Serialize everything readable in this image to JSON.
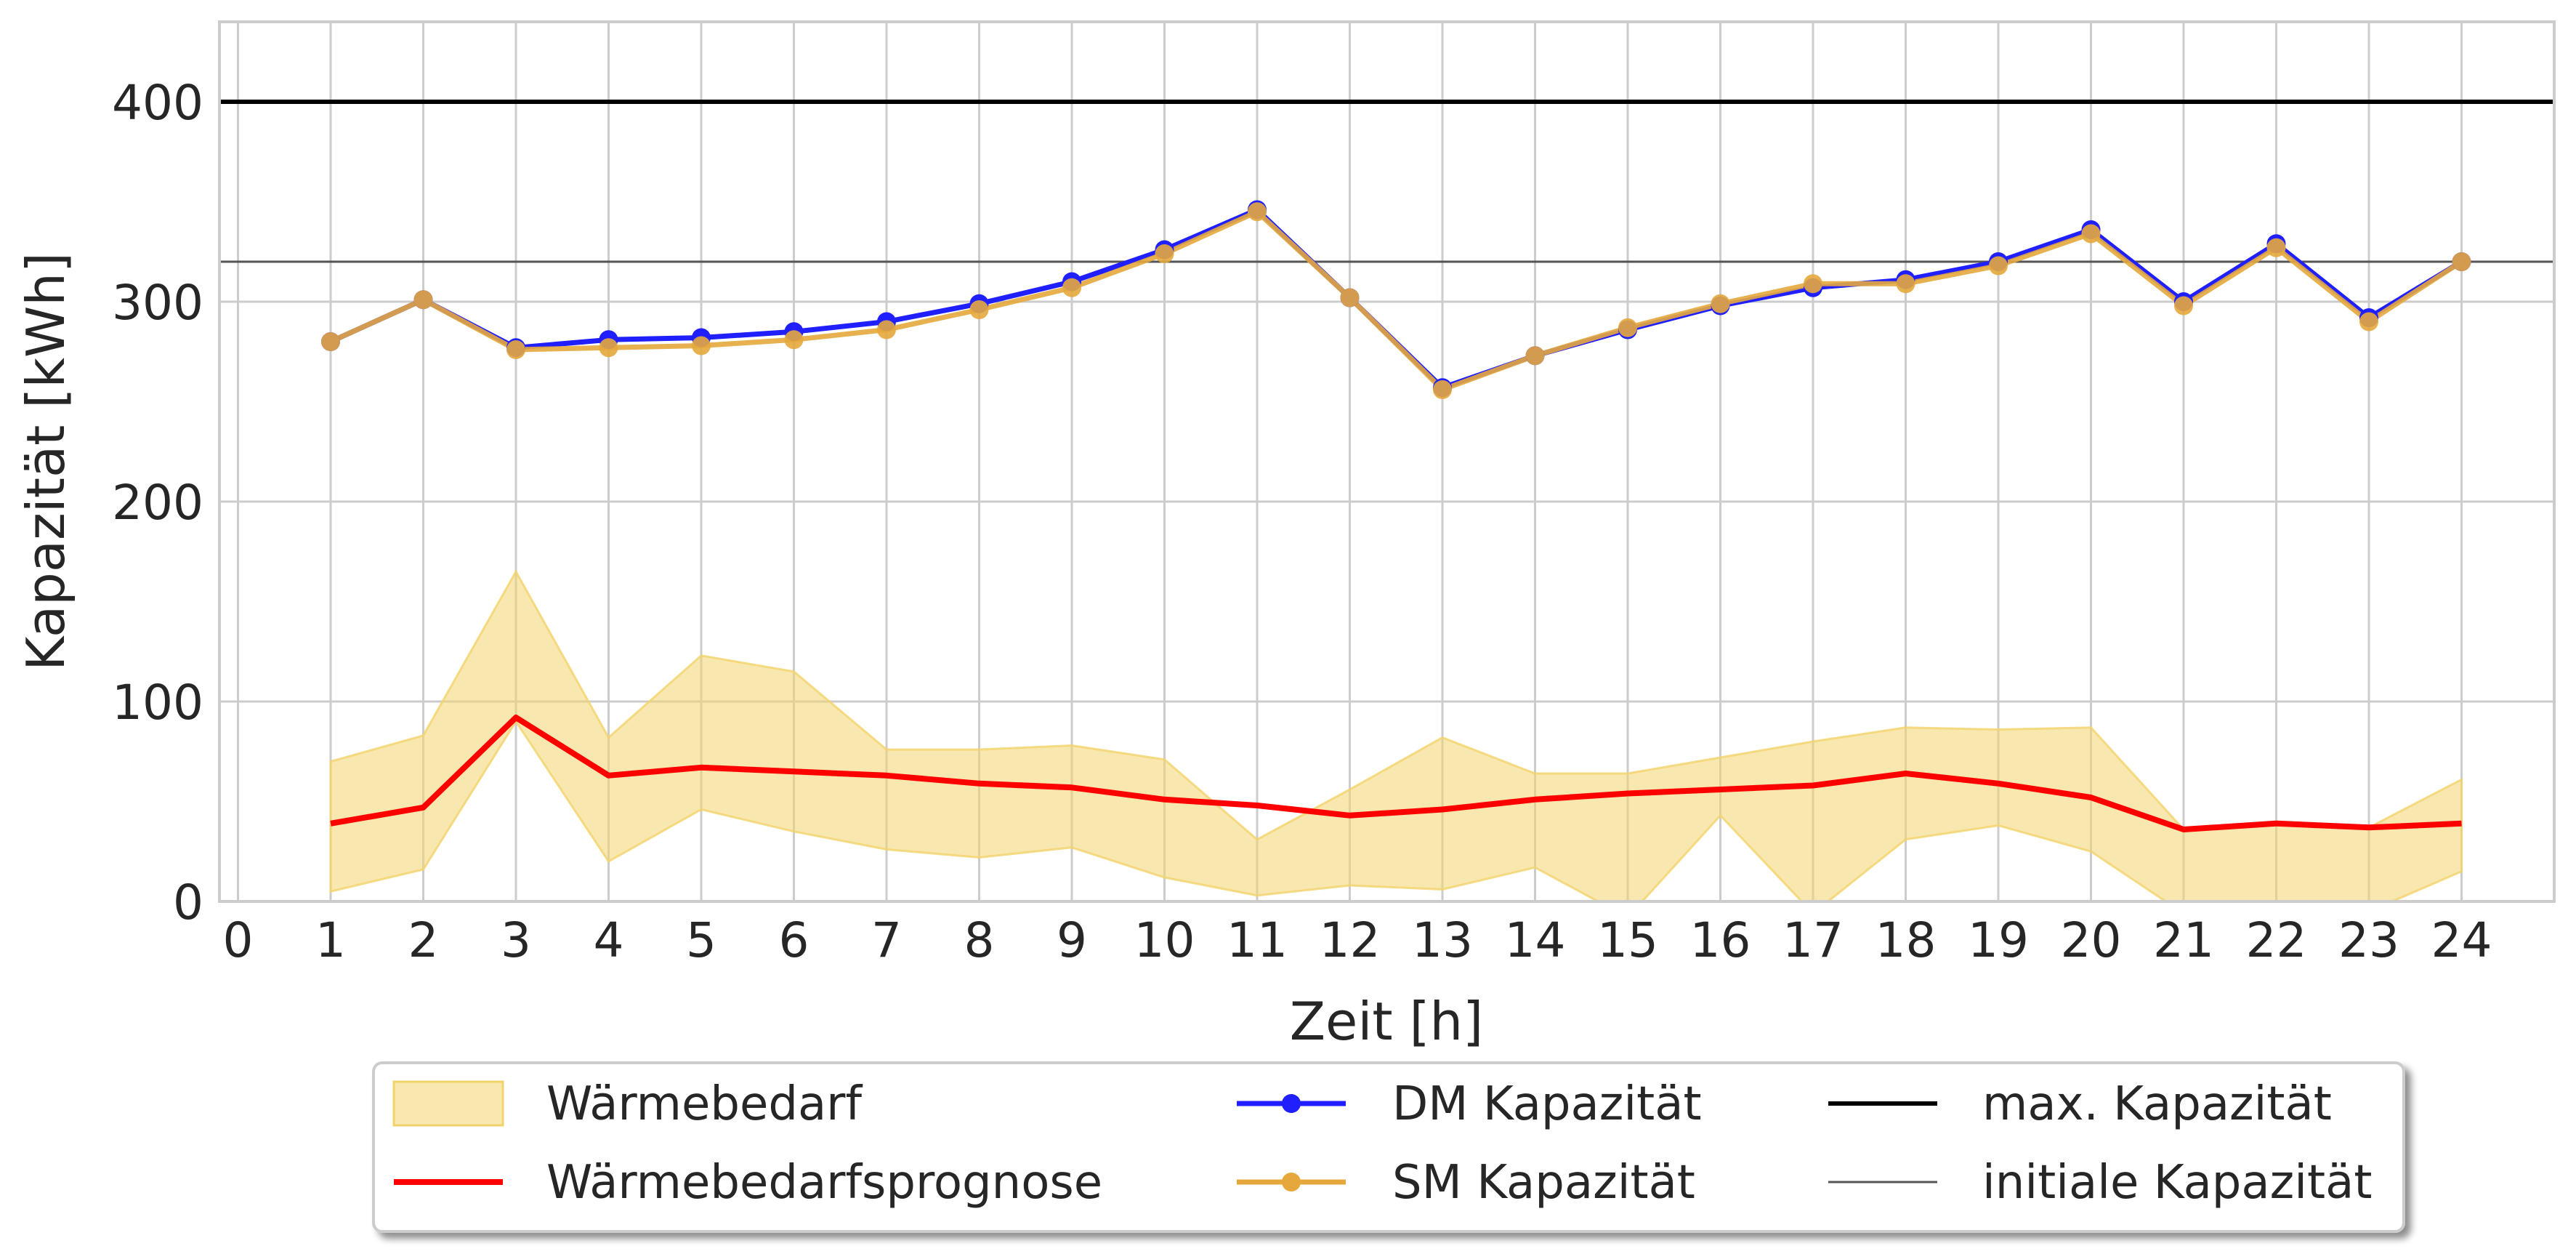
{
  "colors": {
    "band_fill": "#f2d36b",
    "forecast": "#ff0000",
    "dm": "#1f1fff",
    "sm": "#e6a83c",
    "max_line": "#000000",
    "initial_line": "#555555",
    "grid": "#cccccc",
    "axes": "#cccccc",
    "text": "#262626"
  },
  "chart_data": {
    "type": "line",
    "xlabel": "Zeit [h]",
    "ylabel": "Kapazität [kWh]",
    "xlim": [
      -0.2,
      25
    ],
    "ylim": [
      0,
      440
    ],
    "xticks": [
      0,
      1,
      2,
      3,
      4,
      5,
      6,
      7,
      8,
      9,
      10,
      11,
      12,
      13,
      14,
      15,
      16,
      17,
      18,
      19,
      20,
      21,
      22,
      23,
      24
    ],
    "yticks": [
      0,
      100,
      200,
      300,
      400
    ],
    "grid": true,
    "x": [
      1,
      2,
      3,
      4,
      5,
      6,
      7,
      8,
      9,
      10,
      11,
      12,
      13,
      14,
      15,
      16,
      17,
      18,
      19,
      20,
      21,
      22,
      23,
      24
    ],
    "band": {
      "name": "Wärmebedarf",
      "lower": [
        5,
        16,
        90,
        20,
        46,
        35,
        26,
        22,
        27,
        12,
        3,
        8,
        6,
        17,
        -8,
        43,
        -6,
        31,
        38,
        25,
        -6,
        -6,
        -5,
        15
      ],
      "upper": [
        70,
        83,
        165,
        82,
        123,
        115,
        76,
        76,
        78,
        71,
        31,
        56,
        82,
        64,
        64,
        72,
        80,
        87,
        86,
        87,
        36,
        40,
        37,
        61
      ]
    },
    "series": [
      {
        "name": "Wärmebedarfsprognose",
        "values": [
          39,
          47,
          92,
          63,
          67,
          65,
          63,
          59,
          57,
          51,
          48,
          43,
          46,
          51,
          54,
          56,
          58,
          64,
          59,
          52,
          36,
          39,
          37,
          39
        ]
      },
      {
        "name": "DM Kapazität",
        "values": [
          280,
          301,
          277,
          281,
          282,
          285,
          290,
          299,
          310,
          326,
          346,
          302,
          257,
          273,
          286,
          298,
          307,
          311,
          320,
          336,
          300,
          329,
          292,
          320
        ]
      },
      {
        "name": "SM Kapazität",
        "values": [
          280,
          301,
          276,
          277,
          278,
          281,
          286,
          296,
          307,
          324,
          345,
          302,
          256,
          273,
          287,
          299,
          309,
          309,
          318,
          334,
          298,
          327,
          290,
          320
        ]
      }
    ],
    "hlines": [
      {
        "name": "max. Kapazität",
        "y": 400
      },
      {
        "name": "initiale Kapazität",
        "y": 320
      }
    ],
    "legend": {
      "placement": "bottom-center, below plot",
      "entries": [
        "Wärmebedarf",
        "Wärmebedarfsprognose",
        "DM Kapazität",
        "SM Kapazität",
        "max. Kapazität",
        "initiale Kapazität"
      ]
    }
  }
}
